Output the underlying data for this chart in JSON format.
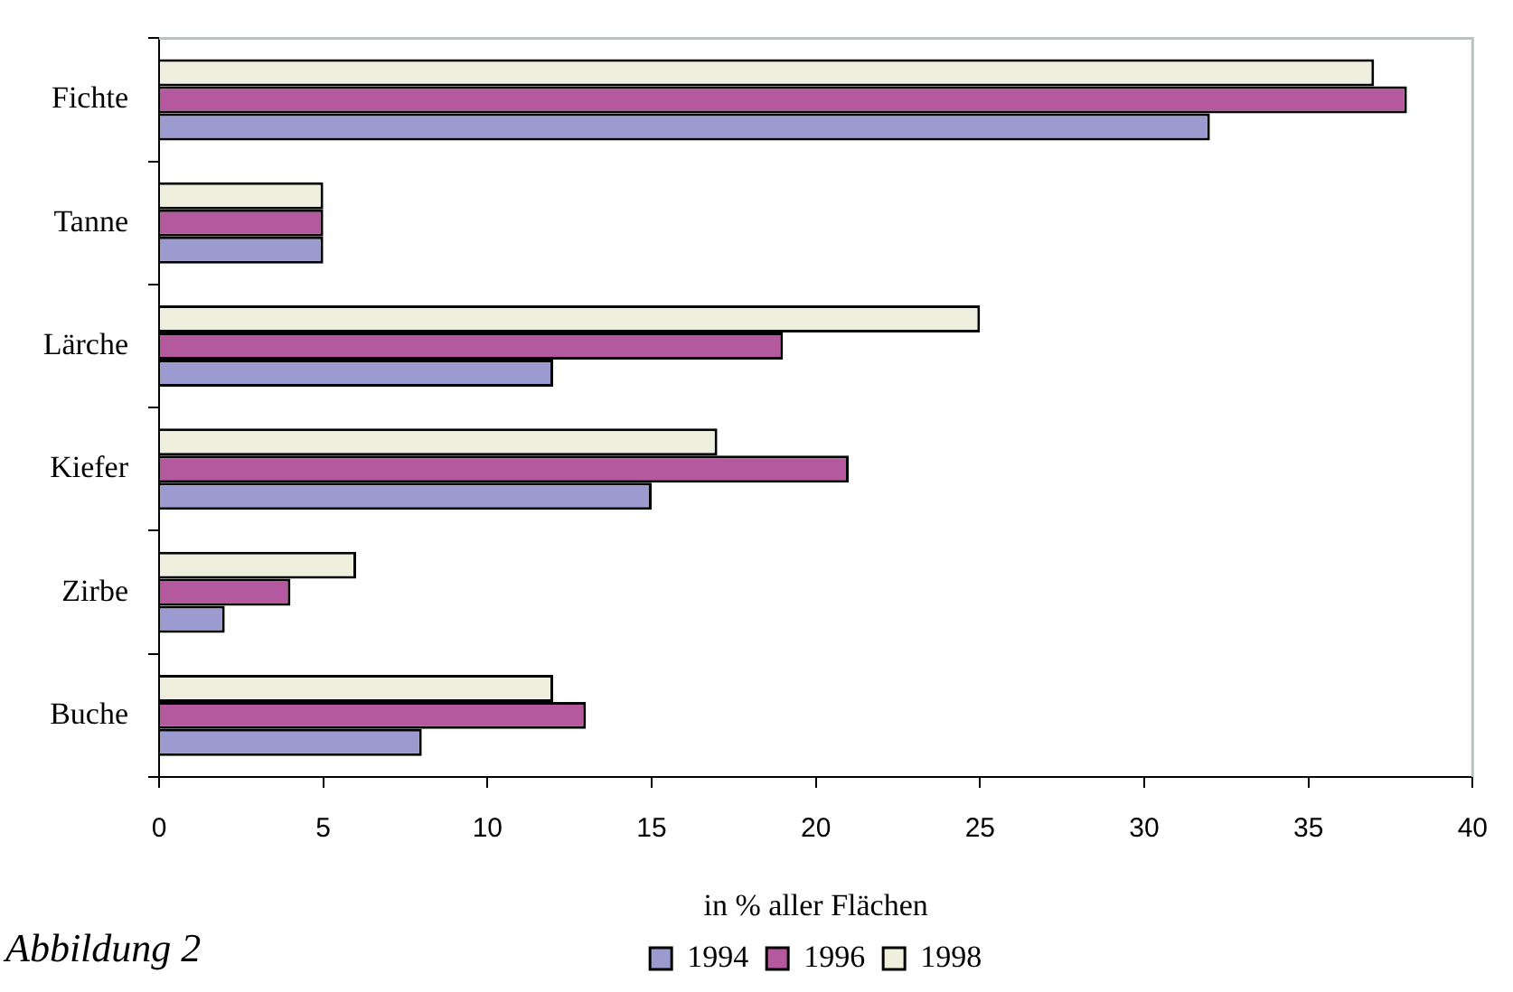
{
  "chart_data": {
    "type": "bar",
    "orientation": "horizontal",
    "xlabel": "in % aller Flächen",
    "annotations": [
      "Abbildung 2"
    ],
    "categories": [
      "Fichte",
      "Tanne",
      "Lärche",
      "Kiefer",
      "Zirbe",
      "Buche"
    ],
    "series": [
      {
        "name": "1994",
        "color": "#9b9bd0",
        "values": [
          32,
          5,
          12,
          15,
          2,
          8
        ]
      },
      {
        "name": "1996",
        "color": "#b5599f",
        "values": [
          38,
          5,
          19,
          21,
          4,
          13
        ]
      },
      {
        "name": "1998",
        "color": "#eef0dd",
        "values": [
          37,
          5,
          25,
          17,
          6,
          12
        ]
      }
    ],
    "xlim": [
      0,
      40
    ],
    "xticks": [
      0,
      5,
      10,
      15,
      20,
      25,
      30,
      35,
      40
    ],
    "grid": false,
    "legend": "bottom"
  }
}
